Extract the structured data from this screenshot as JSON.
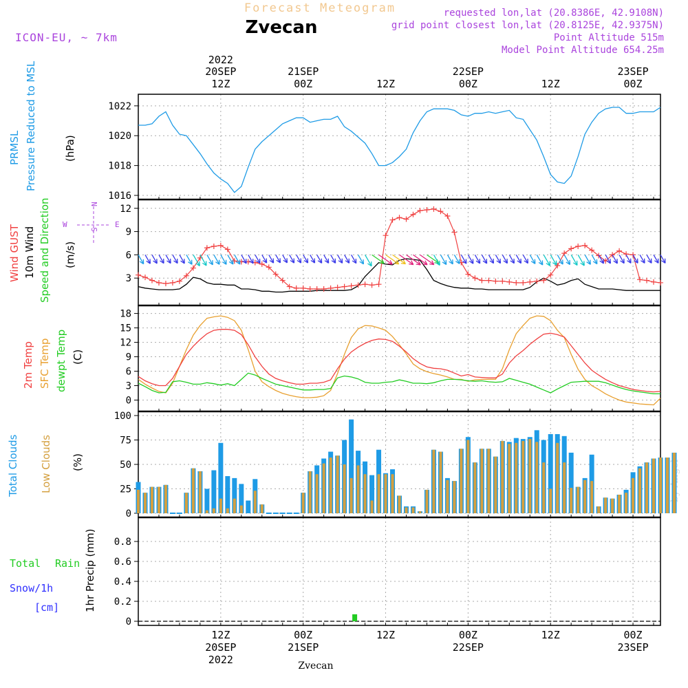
{
  "header": {
    "top_title": "Forecast Meteogram",
    "location": "Zvecan",
    "model": "ICON-EU, ~ 7km",
    "requested": "requested lon,lat (20.8386E, 42.9108N)",
    "grid_point": "grid point closest lon,lat (20.8125E, 42.9375N)",
    "point_alt": "Point Altitude 515m",
    "model_alt": "Model Point Altitude 654.25m",
    "watermark": "by Angel",
    "footer_location": "Zvecan"
  },
  "colors": {
    "prmsl": "#1e9be6",
    "gust": "#f04040",
    "wind": "#000000",
    "temp": "#f04040",
    "sfc": "#e8a030",
    "dewpt": "#22cc22",
    "total_cloud": "#1e9be6",
    "low_cloud": "#d4a040",
    "rain": "#22cc22",
    "snow": "#3030ff",
    "purple": "#aa44dd"
  },
  "time_axis": {
    "top_labels": [
      {
        "line1": "2022",
        "line2": "20SEP",
        "line3": "12Z",
        "t": 12
      },
      {
        "line1": "",
        "line2": "21SEP",
        "line3": "00Z",
        "t": 24
      },
      {
        "line1": "",
        "line2": "",
        "line3": "12Z",
        "t": 36
      },
      {
        "line1": "",
        "line2": "22SEP",
        "line3": "00Z",
        "t": 48
      },
      {
        "line1": "",
        "line2": "",
        "line3": "12Z",
        "t": 60
      },
      {
        "line1": "",
        "line2": "23SEP",
        "line3": "00Z",
        "t": 72
      }
    ],
    "bottom_labels": [
      {
        "line1": "12Z",
        "line2": "20SEP",
        "line3": "2022",
        "t": 12
      },
      {
        "line1": "00Z",
        "line2": "21SEP",
        "line3": "",
        "t": 24
      },
      {
        "line1": "12Z",
        "line2": "",
        "line3": "",
        "t": 36
      },
      {
        "line1": "00Z",
        "line2": "22SEP",
        "line3": "",
        "t": 48
      },
      {
        "line1": "12Z",
        "line2": "",
        "line3": "",
        "t": 60
      },
      {
        "line1": "00Z",
        "line2": "23SEP",
        "line3": "",
        "t": 72
      }
    ]
  },
  "panel_labels": {
    "p1": {
      "a": "PRMSL",
      "b": "Pressure Reduced to MSL",
      "unit": "(hPa)"
    },
    "p2": {
      "a": "Wind GUST",
      "b": "10m Wind",
      "c": "Speed and Direction",
      "unit": "(m/s)",
      "compass_n": "N",
      "compass_s": "S",
      "compass_w": "W",
      "compass_e": "E"
    },
    "p3": {
      "a": "2m Temp",
      "b": "SFC Temp",
      "c": "dewpt Temp",
      "unit": "(C)"
    },
    "p4": {
      "a": "Total Clouds",
      "b": "Low Clouds",
      "unit": "(%)"
    },
    "p5": {
      "a": "Total",
      "a2": "Rain",
      "b": "Snow/1h",
      "c": "[cm]",
      "unit": "1hr Precip (mm)"
    }
  },
  "chart_data": [
    {
      "type": "line",
      "x_unit": "hours from 20SEP 00Z",
      "x": [
        0,
        1,
        2,
        3,
        4,
        5,
        6,
        7,
        8,
        9,
        10,
        11,
        12,
        13,
        14,
        15,
        16,
        17,
        18,
        19,
        20,
        21,
        22,
        23,
        24,
        25,
        26,
        27,
        28,
        29,
        30,
        31,
        32,
        33,
        34,
        35,
        36,
        37,
        38,
        39,
        40,
        41,
        42,
        43,
        44,
        45,
        46,
        47,
        48,
        49,
        50,
        51,
        52,
        53,
        54,
        55,
        56,
        57,
        58,
        59,
        60,
        61,
        62,
        63,
        64,
        65,
        66,
        67,
        68,
        69,
        70,
        71,
        72,
        73,
        74,
        75,
        76
      ],
      "series": [
        {
          "values": [
            1020.7,
            1020.7,
            1020.8,
            1021.3,
            1021.6,
            1020.7,
            1020.1,
            1020.0,
            1019.4,
            1018.8,
            1018.1,
            1017.5,
            1017.1,
            1016.8,
            1016.2,
            1016.6,
            1017.9,
            1019.1,
            1019.6,
            1020.0,
            1020.4,
            1020.8,
            1021.0,
            1021.2,
            1021.2,
            1020.9,
            1021.0,
            1021.1,
            1021.1,
            1021.3,
            1020.6,
            1020.3,
            1019.9,
            1019.5,
            1018.8,
            1018.0,
            1018.0,
            1018.2,
            1018.6,
            1019.1,
            1020.2,
            1021.0,
            1021.6,
            1021.8,
            1021.8,
            1021.8,
            1021.7,
            1021.4,
            1021.3,
            1021.5,
            1021.5,
            1021.6,
            1021.5,
            1021.6,
            1021.7,
            1021.2,
            1021.1,
            1020.4,
            1019.7,
            1018.6,
            1017.4,
            1016.9,
            1016.8,
            1017.3,
            1018.6,
            1020.1,
            1020.9,
            1021.5,
            1021.8,
            1021.9,
            1021.9,
            1021.5,
            1021.5,
            1021.6,
            1021.6,
            1021.6,
            1021.9
          ]
        }
      ],
      "ylim": [
        1016,
        1022.5
      ],
      "yticks": [
        1016,
        1018,
        1020,
        1022
      ]
    },
    {
      "type": "line",
      "x_unit": "hours from 20SEP 00Z",
      "series": [
        {
          "values": [
            3.4,
            3.1,
            2.7,
            2.4,
            2.3,
            2.4,
            2.6,
            3.3,
            4.3,
            5.6,
            6.9,
            7.1,
            7.2,
            6.7,
            5.2,
            5.1,
            5.1,
            5.0,
            4.8,
            4.4,
            3.5,
            2.7,
            1.9,
            1.7,
            1.7,
            1.6,
            1.6,
            1.6,
            1.7,
            1.8,
            1.9,
            2.0,
            2.1,
            2.2,
            2.1,
            2.2,
            8.5,
            10.5,
            10.8,
            10.6,
            11.2,
            11.7,
            11.8,
            11.9,
            11.6,
            11.0,
            8.9,
            5.0,
            3.5,
            3.0,
            2.7,
            2.7,
            2.6,
            2.6,
            2.5,
            2.4,
            2.4,
            2.5,
            2.6,
            2.7,
            3.4,
            4.6,
            6.2,
            6.8,
            7.1,
            7.2,
            6.6,
            5.9,
            5.2,
            6.0,
            6.5,
            6.1,
            6.0,
            2.8,
            2.7,
            2.5,
            2.4
          ]
        },
        {
          "values": [
            1.9,
            1.7,
            1.6,
            1.5,
            1.5,
            1.5,
            1.6,
            2.2,
            3.1,
            2.9,
            2.4,
            2.2,
            2.2,
            2.1,
            2.1,
            1.6,
            1.6,
            1.5,
            1.3,
            1.3,
            1.2,
            1.2,
            1.3,
            1.3,
            1.3,
            1.3,
            1.4,
            1.4,
            1.4,
            1.4,
            1.4,
            1.5,
            2.0,
            3.2,
            4.1,
            5.0,
            4.8,
            4.7,
            5.3,
            5.5,
            5.4,
            5.3,
            4.1,
            2.7,
            2.3,
            2.0,
            1.8,
            1.7,
            1.7,
            1.6,
            1.6,
            1.5,
            1.5,
            1.5,
            1.5,
            1.5,
            1.5,
            1.8,
            2.5,
            3.0,
            2.6,
            2.1,
            2.3,
            2.7,
            2.9,
            2.2,
            1.9,
            1.6,
            1.6,
            1.6,
            1.5,
            1.4,
            1.4,
            1.4,
            1.4,
            1.4,
            1.4
          ]
        }
      ],
      "ylim": [
        0,
        12.6
      ],
      "yticks": [
        3,
        6,
        9,
        12
      ]
    },
    {
      "type": "line",
      "x_unit": "hours from 20SEP 00Z",
      "series": [
        {
          "values": [
            4.9,
            4.0,
            3.4,
            3.0,
            3.0,
            4.5,
            7.0,
            9.5,
            11.2,
            12.6,
            13.8,
            14.5,
            14.7,
            14.7,
            14.5,
            13.6,
            11.5,
            9.0,
            7.0,
            5.4,
            4.5,
            4.0,
            3.6,
            3.3,
            3.3,
            3.5,
            3.5,
            3.7,
            4.2,
            6.5,
            8.5,
            10.0,
            11.0,
            11.8,
            12.4,
            12.7,
            12.6,
            12.2,
            11.2,
            10.0,
            8.6,
            7.6,
            6.9,
            6.6,
            6.5,
            6.2,
            5.6,
            5.0,
            5.3,
            4.8,
            4.7,
            4.6,
            4.6,
            5.4,
            7.7,
            9.2,
            10.3,
            11.6,
            12.7,
            13.7,
            13.9,
            13.6,
            13.1,
            11.3,
            9.5,
            7.7,
            6.2,
            5.2,
            4.3,
            3.6,
            3.0,
            2.6,
            2.2,
            2.0,
            1.8,
            1.7,
            1.8
          ]
        },
        {
          "values": [
            4.3,
            3.3,
            2.5,
            1.8,
            1.5,
            3.5,
            7.0,
            10.5,
            13.5,
            15.5,
            17.0,
            17.3,
            17.5,
            17.2,
            16.5,
            14.5,
            10.5,
            6.0,
            3.8,
            2.8,
            2.0,
            1.4,
            1.0,
            0.7,
            0.5,
            0.5,
            0.6,
            0.9,
            2.0,
            5.5,
            9.5,
            13.0,
            14.8,
            15.5,
            15.4,
            15.0,
            14.5,
            13.2,
            11.5,
            9.6,
            7.5,
            6.5,
            5.9,
            5.5,
            5.2,
            4.8,
            4.3,
            4.3,
            3.9,
            4.2,
            4.3,
            4.3,
            4.3,
            6.5,
            10.5,
            13.8,
            15.5,
            17.0,
            17.5,
            17.4,
            16.5,
            14.5,
            13.0,
            9.5,
            6.4,
            4.3,
            3.0,
            2.2,
            1.3,
            0.6,
            0.0,
            -0.4,
            -0.6,
            -0.8,
            -0.9,
            -1.0,
            0.4
          ]
        },
        {
          "values": [
            3.5,
            2.8,
            2.0,
            1.5,
            1.6,
            3.8,
            4.0,
            3.7,
            3.3,
            3.3,
            3.6,
            3.4,
            3.1,
            3.4,
            3.0,
            4.3,
            5.6,
            5.2,
            4.5,
            3.9,
            3.3,
            3.0,
            2.7,
            2.4,
            2.1,
            2.1,
            2.2,
            2.2,
            2.4,
            4.6,
            5.0,
            4.8,
            4.4,
            3.7,
            3.5,
            3.5,
            3.7,
            3.8,
            4.2,
            3.9,
            3.5,
            3.5,
            3.4,
            3.6,
            4.0,
            4.3,
            4.3,
            4.2,
            4.0,
            3.9,
            4.0,
            3.8,
            3.7,
            3.8,
            4.5,
            4.1,
            3.7,
            3.3,
            2.7,
            2.1,
            1.5,
            2.3,
            3.0,
            3.7,
            3.8,
            3.9,
            3.9,
            3.9,
            3.6,
            3.1,
            2.6,
            2.2,
            1.9,
            1.7,
            1.5,
            1.3,
            1.3
          ]
        }
      ],
      "ylim": [
        -1.5,
        18.8
      ],
      "yticks": [
        0,
        3,
        6,
        9,
        12,
        15,
        18
      ]
    },
    {
      "type": "bar",
      "x_unit": "hours from 20SEP 00Z",
      "series": [
        {
          "values": [
            32,
            21,
            27,
            27,
            29,
            0,
            0,
            21,
            46,
            43,
            25,
            44,
            72,
            38,
            36,
            30,
            13,
            35,
            9,
            0,
            0,
            0,
            0,
            0,
            21,
            43,
            49,
            56,
            63,
            59,
            75,
            96,
            64,
            53,
            39,
            65,
            41,
            45,
            18,
            7,
            7,
            2,
            24,
            65,
            63,
            36,
            33,
            66,
            78,
            52,
            66,
            66,
            58,
            74,
            73,
            77,
            76,
            78,
            85,
            75,
            81,
            81,
            79,
            62,
            27,
            36,
            60,
            7,
            16,
            15,
            19,
            24,
            42,
            48,
            52,
            56,
            57,
            57,
            62
          ]
        },
        {
          "values": [
            24,
            21,
            27,
            27,
            29,
            0,
            0,
            21,
            46,
            43,
            3,
            5,
            15,
            5,
            15,
            8,
            0,
            23,
            9,
            0,
            0,
            0,
            0,
            0,
            21,
            43,
            40,
            51,
            57,
            59,
            50,
            36,
            49,
            40,
            13,
            40,
            40,
            40,
            18,
            6,
            6,
            2,
            24,
            65,
            63,
            34,
            33,
            66,
            75,
            52,
            66,
            66,
            58,
            74,
            71,
            72,
            74,
            76,
            73,
            52,
            25,
            72,
            52,
            26,
            27,
            34,
            33,
            7,
            16,
            15,
            19,
            21,
            36,
            46,
            52,
            56,
            57,
            57,
            62
          ]
        }
      ],
      "ylim": [
        0,
        100
      ],
      "yticks": [
        0,
        25,
        50,
        75,
        100
      ]
    },
    {
      "type": "bar",
      "x_unit": "hours from 20SEP 00Z",
      "series": [
        {
          "x": [
            31.5
          ],
          "values": [
            0.07
          ]
        }
      ],
      "ylim": [
        0,
        1.0
      ],
      "yticks": [
        0,
        0.2,
        0.4,
        0.6,
        0.8
      ]
    }
  ]
}
